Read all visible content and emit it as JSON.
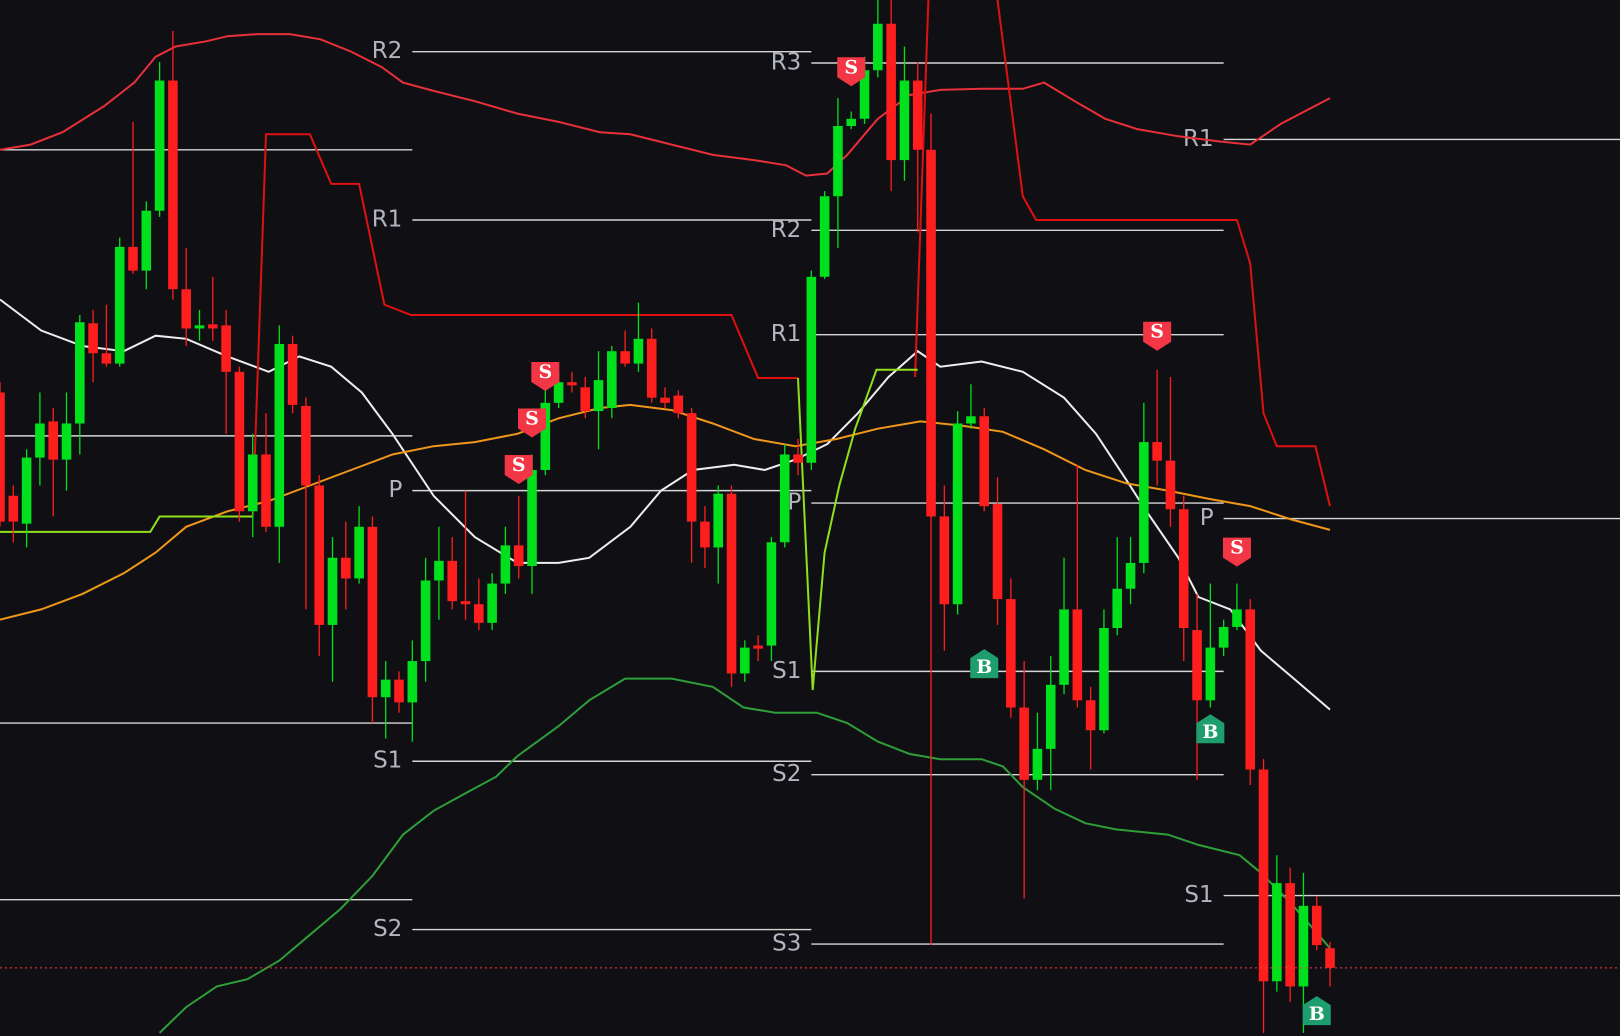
{
  "chart_data": {
    "type": "candlestick",
    "xlim": [
      0,
      121.8
    ],
    "ylim": [
      -0.3,
      100
    ],
    "up_color": "#00e01d",
    "down_color": "#ff1e1e",
    "open": [
      62,
      52,
      49.3,
      55.7,
      59.2,
      55.5,
      59,
      68.7,
      65.8,
      64.8,
      76.1,
      73.8,
      79.6,
      92.2,
      72,
      68.2,
      68.6,
      68.5,
      64,
      50.5,
      56,
      49,
      66.7,
      60.7,
      53,
      39.5,
      46,
      44,
      49,
      32.5,
      34.2,
      32,
      36,
      43.8,
      45.7,
      41.8,
      41.5,
      39.7,
      43.5,
      47.2,
      45.2,
      54.5,
      61,
      63,
      62.5,
      60.2,
      60.5,
      66,
      64.8,
      67.2,
      61.5,
      61.7,
      60,
      49.5,
      47,
      52.2,
      34.8,
      37.5,
      37.5,
      47.5,
      56,
      55.2,
      73.2,
      81,
      87.8,
      88.5,
      93.2,
      97.7,
      84.5,
      92.2,
      85.5,
      50,
      41.5,
      59,
      59.7,
      51.2,
      42,
      31.5,
      24.5,
      27.5,
      33.7,
      41,
      32.2,
      29.3,
      39.2,
      43,
      45.5,
      57.2,
      55.4,
      50.7,
      39,
      32.2,
      37.3,
      39.3,
      41,
      25.5,
      5,
      14.5,
      4.5,
      12.3,
      8.2
    ],
    "high": [
      63,
      53,
      56.5,
      62,
      60.5,
      62,
      69.5,
      70,
      70.5,
      77,
      88.2,
      80.5,
      94,
      97,
      76,
      70,
      73.2,
      70,
      64.5,
      58,
      60,
      68.5,
      67.5,
      61.5,
      54,
      48,
      49.5,
      51,
      50,
      36,
      35,
      38,
      46,
      49,
      48,
      52.5,
      44,
      44.5,
      49,
      52,
      56,
      63,
      64,
      64,
      63.5,
      66,
      66.5,
      68,
      70.7,
      68.2,
      62.5,
      62.2,
      60.5,
      51,
      53,
      53,
      38,
      38.5,
      48,
      57,
      57.5,
      73.8,
      81.5,
      90.5,
      89.2,
      94.5,
      100,
      100,
      95.5,
      94,
      89,
      53,
      60.2,
      62.8,
      60.5,
      53.8,
      44,
      36,
      31,
      36.5,
      46,
      55,
      33.5,
      41,
      48,
      48,
      61,
      64.2,
      63.5,
      52,
      42.5,
      43.5,
      40,
      43.5,
      42,
      26.5,
      17.2,
      16,
      15.5,
      13.2,
      8.8
    ],
    "low": [
      49,
      47.5,
      47,
      53,
      50,
      52.5,
      56,
      63,
      64.5,
      64.5,
      73.5,
      72,
      79,
      71,
      66.5,
      67,
      67,
      58,
      49.5,
      48,
      48.5,
      45.5,
      60,
      41,
      36.5,
      34,
      41,
      43.5,
      30,
      28.5,
      31,
      28.2,
      34,
      40,
      41,
      40,
      39,
      39,
      42.5,
      44,
      42.5,
      54,
      60.5,
      62,
      59.5,
      56.5,
      59.5,
      64.5,
      64,
      61,
      60.5,
      59.5,
      45.5,
      45,
      43.5,
      33.5,
      34,
      36,
      36,
      47,
      54,
      54.5,
      73,
      76,
      87.5,
      88,
      92.5,
      81.5,
      82.5,
      77.5,
      8.5,
      37,
      40.5,
      58.5,
      50.5,
      39.5,
      30.5,
      13,
      23.5,
      23.5,
      32.8,
      31.5,
      25.5,
      29,
      38.5,
      41.5,
      44.5,
      53,
      49,
      36,
      24.5,
      31.5,
      36.5,
      39,
      24,
      0,
      4,
      3,
      0,
      8,
      4.5
    ],
    "close": [
      49.5,
      49.5,
      55.7,
      59,
      55.5,
      59,
      68.8,
      65.8,
      64.8,
      76.1,
      73.8,
      79.6,
      92.2,
      72,
      68.2,
      68.5,
      68.2,
      64,
      50.5,
      56,
      49,
      66.7,
      60.8,
      53,
      39.5,
      46,
      44,
      49,
      32.5,
      34.2,
      32,
      36,
      43.8,
      45.7,
      41.8,
      41.5,
      39.7,
      43.5,
      47.2,
      45.2,
      54.5,
      61,
      63,
      62.7,
      60.2,
      63.2,
      66,
      64.8,
      67.2,
      61.5,
      61,
      60,
      49.5,
      47,
      52.2,
      34.8,
      37.3,
      37.2,
      47.5,
      56,
      55.2,
      73.2,
      81,
      87.8,
      88.5,
      93.2,
      97.7,
      84.5,
      92.2,
      85.5,
      50,
      41.5,
      59,
      59.7,
      51,
      42,
      31.5,
      24.5,
      27.5,
      33.7,
      41,
      32.2,
      29.3,
      39.2,
      43,
      45.5,
      57.2,
      55.4,
      50.7,
      39.2,
      32.2,
      37.3,
      39.3,
      41,
      25.5,
      5,
      14.5,
      4.5,
      12.3,
      8.5,
      6.3
    ],
    "price_line_color": "#ff3b3b",
    "lines": [
      {
        "color": "#eeeeee",
        "x": [
          0,
          3.1,
          6.2,
          9.3,
          11.7,
          14,
          17.1,
          20.2,
          22.5,
          24.9,
          27.2,
          29.5,
          32.6,
          35.7,
          38.9,
          42,
          44.3,
          47.4,
          49.7,
          52.1,
          55.2,
          57.5,
          59.8,
          62.2,
          64.5,
          66.8,
          69,
          70.7,
          73.8,
          76.9,
          80,
          82.4,
          84.7,
          86.2,
          88.6,
          90.1,
          92.5,
          94.8,
          97.1,
          100
        ],
        "values": [
          71,
          68,
          66.5,
          66,
          67.5,
          67.2,
          65.5,
          64,
          65.5,
          64.5,
          62,
          58,
          52,
          48,
          45.5,
          45.5,
          46,
          49,
          52.5,
          54.5,
          55,
          54.5,
          55.5,
          57,
          60,
          63.5,
          66,
          64.5,
          65,
          64,
          61.5,
          58,
          53.5,
          50.5,
          46,
          42.2,
          41,
          37,
          34.5,
          31.3
        ]
      },
      {
        "color": "#f0961a",
        "x": [
          0,
          3.1,
          6.2,
          9.3,
          11.7,
          14,
          17.1,
          20.2,
          23.3,
          26.4,
          29.5,
          32.6,
          35.7,
          38.9,
          42,
          45.1,
          47.4,
          50.5,
          53.6,
          56.7,
          59.8,
          62.9,
          66,
          69.2,
          72.3,
          75.4,
          78.5,
          81.6,
          84.7,
          87.8,
          90.9,
          94,
          97.1,
          100
        ],
        "values": [
          40,
          41,
          42.5,
          44.5,
          46.5,
          49,
          50.5,
          51.5,
          53,
          54.5,
          56,
          56.8,
          57.2,
          58,
          59.5,
          60.5,
          60.8,
          60.3,
          59,
          57.5,
          56.8,
          57.5,
          58.5,
          59.2,
          58.8,
          58.2,
          56.5,
          54.5,
          53.2,
          52.5,
          51.7,
          51,
          49.7,
          48.7
        ]
      },
      {
        "color": "#e8303a",
        "x": [
          0,
          2.3,
          4.7,
          7.8,
          10.1,
          11.7,
          13.2,
          15.5,
          17.1,
          19.4,
          21.8,
          24.1,
          26.4,
          28.7,
          30.3,
          32.6,
          35.7,
          38.9,
          42,
          45.1,
          47.4,
          50.5,
          53.6,
          56.7,
          59.1,
          60.6,
          62.2,
          63.7,
          66,
          68.4,
          70.7,
          73.8,
          76.9,
          78.5,
          80.8,
          83.1,
          85.5,
          88.6,
          91.7,
          94,
          96.3,
          100
        ],
        "values": [
          85.5,
          86,
          87.2,
          89.7,
          92,
          94.5,
          95.5,
          96,
          96.5,
          96.7,
          96.7,
          96.2,
          95,
          93.5,
          92,
          91.2,
          90.2,
          89,
          88.2,
          87.2,
          87,
          86,
          85,
          84.5,
          84,
          83,
          83.2,
          85,
          88.5,
          90.8,
          91.3,
          91.4,
          91.4,
          92,
          90.2,
          88.5,
          87.5,
          86.8,
          86.3,
          86,
          88,
          90.5
        ]
      },
      {
        "color": "#2e9e3a",
        "x": [
          12,
          14,
          16.3,
          18.6,
          21,
          23.3,
          25.6,
          28,
          30.3,
          32.6,
          35,
          37.3,
          38.9,
          42,
          44.3,
          47,
          50.5,
          53.6,
          55.9,
          58.3,
          61.4,
          63.7,
          66,
          68.4,
          70.7,
          73.8,
          75.4,
          76.9,
          79.3,
          81.6,
          83.9,
          87.8,
          90.1,
          93.2,
          94.8,
          97.1,
          100
        ],
        "values": [
          0,
          2.5,
          4.5,
          5.2,
          7,
          9.5,
          12,
          15.2,
          19.2,
          21.5,
          23.2,
          24.8,
          26.8,
          29.7,
          32.2,
          34.3,
          34.3,
          33.5,
          31.5,
          31,
          31,
          30,
          28.2,
          27,
          26.5,
          26.5,
          25.8,
          23.8,
          21.7,
          20.3,
          19.7,
          19.2,
          18.2,
          17.2,
          15.5,
          12.5,
          8.2
        ]
      },
      {
        "color": "#e01010",
        "x": [
          19,
          20,
          23.3,
          24.9,
          27,
          28.9,
          30.9,
          55,
          57,
          60,
          null,
          68.8,
          69.8,
          null,
          75,
          76.9,
          77.9,
          93,
          94,
          95,
          96,
          98.9,
          100
        ],
        "values": [
          50,
          87,
          87,
          82.2,
          82.2,
          70.5,
          69.5,
          69.5,
          63.4,
          63.4,
          null,
          63.5,
          100,
          null,
          100,
          81,
          78.7,
          78.7,
          74.5,
          60,
          56.8,
          56.8,
          51
        ]
      },
      {
        "color": "#8fe01a",
        "x": [
          0,
          11.3,
          12,
          19,
          null,
          60,
          61.1,
          62,
          63.1,
          64.3,
          65.9,
          69
        ],
        "values": [
          48.5,
          48.5,
          50,
          50,
          null,
          63.4,
          33.2,
          46.5,
          53,
          58.5,
          64.2,
          64.2
        ]
      }
    ],
    "pivot_color": "#d6d6d6",
    "pivots": [
      {
        "start": 0,
        "end": 31,
        "levels": [
          {
            "value": 85.5
          },
          {
            "value": 57.8
          },
          {
            "value": 30
          },
          {
            "value": 12.9
          }
        ]
      },
      {
        "start": 31,
        "end": 61,
        "levels": [
          {
            "label": "R2",
            "value": 95
          },
          {
            "label": "R1",
            "value": 78.7
          },
          {
            "label": "P",
            "value": 52.5
          },
          {
            "label": "S1",
            "value": 26.3
          },
          {
            "label": "S2",
            "value": 10
          }
        ]
      },
      {
        "start": 61,
        "end": 92,
        "levels": [
          {
            "label": "R3",
            "value": 93.9
          },
          {
            "label": "R2",
            "value": 77.7
          },
          {
            "label": "R1",
            "value": 67.6
          },
          {
            "label": "P",
            "value": 51.3
          },
          {
            "label": "S1",
            "value": 35
          },
          {
            "label": "S2",
            "value": 25
          },
          {
            "label": "S3",
            "value": 8.6
          }
        ]
      },
      {
        "start": 92,
        "end": 121.8,
        "levels": [
          {
            "label": "R1",
            "value": 86.5
          },
          {
            "label": "P",
            "value": 49.8
          },
          {
            "label": "S1",
            "value": 13.3
          }
        ]
      }
    ],
    "signals": [
      {
        "label": "S",
        "x": 41,
        "value": 63.5,
        "color": "#f23645"
      },
      {
        "label": "S",
        "x": 40,
        "value": 59,
        "color": "#f23645"
      },
      {
        "label": "S",
        "x": 39,
        "value": 54.5,
        "color": "#f23645"
      },
      {
        "label": "S",
        "x": 64,
        "value": 93,
        "color": "#f23645"
      },
      {
        "label": "S",
        "x": 87,
        "value": 67.4,
        "color": "#f23645"
      },
      {
        "label": "S",
        "x": 93,
        "value": 46.5,
        "color": "#f23645"
      },
      {
        "label": "B",
        "x": 74,
        "value": 35.8,
        "color": "#1e9e6e"
      },
      {
        "label": "B",
        "x": 91,
        "value": 29.5,
        "color": "#1e9e6e"
      },
      {
        "label": "B",
        "x": 99,
        "value": 2.2,
        "color": "#1e9e6e"
      }
    ]
  }
}
